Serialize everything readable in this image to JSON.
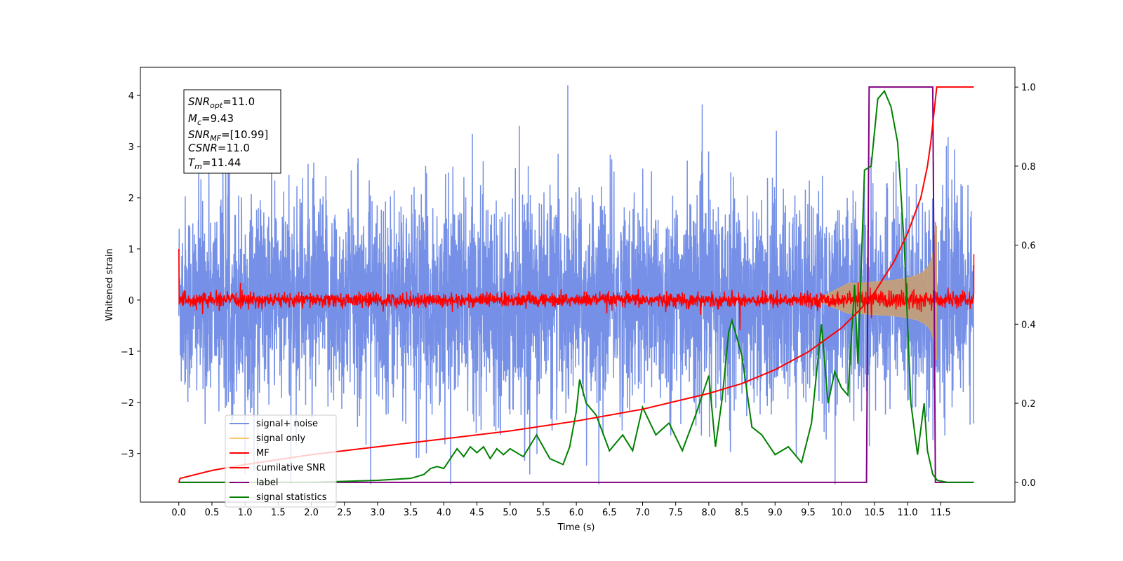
{
  "chart_data": {
    "type": "line",
    "xlabel": "Time (s)",
    "ylabel": "Whitened strain",
    "x_ticks": [
      "0.0",
      "0.5",
      "1.0",
      "1.5",
      "2.0",
      "2.5",
      "3.0",
      "3.5",
      "4.0",
      "4.5",
      "5.0",
      "5.5",
      "6.0",
      "6.5",
      "7.0",
      "7.5",
      "8.0",
      "8.5",
      "9.0",
      "9.5",
      "10.0",
      "10.5",
      "11.0",
      "11.5"
    ],
    "y_ticks": [
      "4",
      "3",
      "2",
      "1",
      "0",
      "−1",
      "−2",
      "−3"
    ],
    "y2_ticks": [
      "1.0",
      "0.8",
      "0.6",
      "0.4",
      "0.2",
      "0.0"
    ],
    "xlim": [
      -0.58,
      12.62
    ],
    "ylim": [
      -3.95,
      4.55
    ],
    "y2lim": [
      -0.05,
      1.05
    ],
    "legend_position": "lower-left",
    "annotation": {
      "snr_opt": {
        "base": "SNR",
        "sub": "opt",
        "value": "=11.0"
      },
      "mc": {
        "base": "M",
        "sub": "c",
        "value": "=9.43"
      },
      "snr_mf": {
        "base": "SNR",
        "sub": "MF",
        "value": "=[10.99]"
      },
      "csnr": {
        "base": "CSNR",
        "sub": "",
        "value": "=11.0"
      },
      "tm": {
        "base": "T",
        "sub": "m",
        "value": "=11.44"
      }
    },
    "series": [
      {
        "name": "signal+ noise",
        "color": "#7590e6",
        "axis": "left",
        "description": "whitened noisy strain, amplitude about ±2 with peaks to ±4 over 0–12 s"
      },
      {
        "name": "signal only",
        "color": "#f5c878",
        "axis": "left",
        "description": "chirp growing from 0 to about ±1.4 near 11.44 s then cut off"
      },
      {
        "name": "MF",
        "color": "#ff0000",
        "axis": "left",
        "description": "matched filter output around 0, with spike near 1.0 at both ends"
      },
      {
        "name": "cumilative SNR",
        "color": "#ff0000",
        "axis": "right",
        "x": [
          0.0,
          0.02,
          0.5,
          1.0,
          2.0,
          3.0,
          4.0,
          5.0,
          6.0,
          7.0,
          8.0,
          8.5,
          9.0,
          9.5,
          10.0,
          10.3,
          10.5,
          10.8,
          11.0,
          11.2,
          11.3,
          11.35,
          11.44,
          11.5,
          12.0
        ],
        "y": [
          0.0,
          0.01,
          0.03,
          0.045,
          0.07,
          0.09,
          0.11,
          0.13,
          0.155,
          0.185,
          0.225,
          0.25,
          0.285,
          0.33,
          0.39,
          0.44,
          0.48,
          0.56,
          0.63,
          0.72,
          0.8,
          0.86,
          1.0,
          1.0,
          1.0
        ]
      },
      {
        "name": "label",
        "color": "#800080",
        "axis": "right",
        "x": [
          0.0,
          10.38,
          10.42,
          11.38,
          11.42,
          12.0
        ],
        "y": [
          0.0,
          0.0,
          1.0,
          1.0,
          0.0,
          0.0
        ]
      },
      {
        "name": "signal statistics",
        "color": "#008000",
        "axis": "right",
        "x": [
          0.0,
          2.0,
          3.0,
          3.5,
          3.7,
          3.8,
          3.9,
          4.0,
          4.2,
          4.3,
          4.4,
          4.5,
          4.6,
          4.7,
          4.8,
          4.9,
          5.0,
          5.2,
          5.4,
          5.6,
          5.8,
          5.9,
          6.0,
          6.05,
          6.15,
          6.3,
          6.5,
          6.7,
          6.85,
          7.0,
          7.2,
          7.4,
          7.6,
          7.8,
          8.0,
          8.1,
          8.2,
          8.3,
          8.35,
          8.5,
          8.65,
          8.8,
          9.0,
          9.2,
          9.4,
          9.55,
          9.7,
          9.8,
          9.9,
          10.0,
          10.1,
          10.2,
          10.25,
          10.35,
          10.45,
          10.55,
          10.65,
          10.75,
          10.85,
          10.95,
          11.05,
          11.15,
          11.25,
          11.3,
          11.38,
          11.45,
          11.6,
          12.0
        ],
        "y": [
          0.0,
          0.0,
          0.005,
          0.01,
          0.02,
          0.035,
          0.04,
          0.035,
          0.085,
          0.065,
          0.09,
          0.075,
          0.09,
          0.06,
          0.085,
          0.07,
          0.085,
          0.065,
          0.12,
          0.06,
          0.045,
          0.09,
          0.18,
          0.26,
          0.2,
          0.17,
          0.08,
          0.12,
          0.08,
          0.19,
          0.12,
          0.15,
          0.08,
          0.17,
          0.27,
          0.09,
          0.21,
          0.38,
          0.41,
          0.32,
          0.14,
          0.12,
          0.07,
          0.09,
          0.05,
          0.15,
          0.4,
          0.2,
          0.28,
          0.24,
          0.22,
          0.5,
          0.3,
          0.79,
          0.8,
          0.97,
          0.99,
          0.95,
          0.86,
          0.6,
          0.2,
          0.07,
          0.2,
          0.08,
          0.02,
          0.005,
          0.0,
          0.0
        ]
      }
    ]
  }
}
